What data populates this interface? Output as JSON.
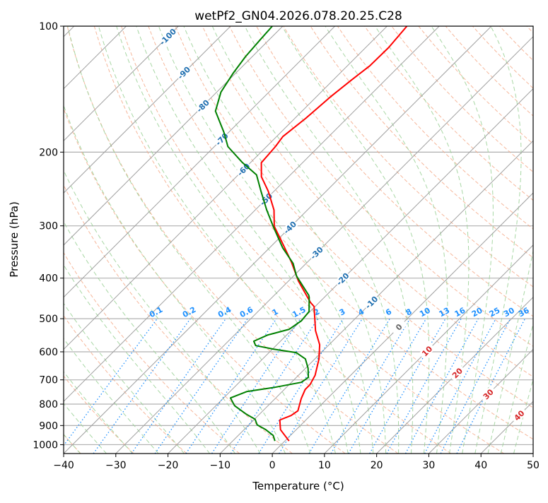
{
  "chart_data": {
    "type": "line",
    "subtype": "skew-t log-p",
    "title": "wetPf2_GN04.2026.078.20.25.C28",
    "xlabel": "Temperature (°C)",
    "ylabel": "Pressure (hPa)",
    "xlim": [
      -40,
      50
    ],
    "ylim": [
      1050,
      100
    ],
    "x_ticks": [
      -40,
      -30,
      -20,
      -10,
      0,
      10,
      20,
      30,
      40,
      50
    ],
    "y_ticks": [
      100,
      200,
      300,
      400,
      500,
      600,
      700,
      800,
      900,
      1000
    ],
    "grid": true,
    "colors": {
      "temperature": "#ff0000",
      "dewpoint": "#008000",
      "isotherm": "#a0a0a0",
      "dry_adiabat": "#f4a582",
      "moist_adiabat": "#9fd39a",
      "mixing_ratio": "#1e90ff",
      "isotherm_label_negative": "#1f6fb0",
      "isotherm_label_zero": "#666666",
      "isotherm_label_positive": "#d62728"
    },
    "series": [
      {
        "name": "Temperature",
        "pressure": [
          100,
          112.4,
          124.4,
          134.5,
          147.6,
          166,
          183.6,
          194,
          212,
          229,
          248,
          275,
          301,
          329.5,
          366,
          406.5,
          457,
          467.7,
          534,
          577,
          624,
          683,
          718,
          738,
          776,
          830,
          852,
          873,
          921,
          980
        ],
        "values": [
          -56.2,
          -55.6,
          -55.7,
          -56.5,
          -57.3,
          -57.9,
          -58.8,
          -58.3,
          -57.9,
          -55.2,
          -51.1,
          -46.4,
          -43.2,
          -38.5,
          -33.1,
          -28.1,
          -21.7,
          -20.2,
          -15.3,
          -11.8,
          -9.2,
          -6.8,
          -6.0,
          -6.0,
          -5.0,
          -3.3,
          -3.7,
          -5.0,
          -3.0,
          0.8
        ]
      },
      {
        "name": "Dewpoint",
        "pressure": [
          100,
          108,
          118.2,
          129.3,
          143.7,
          159.6,
          179.4,
          194,
          212,
          226.6,
          248,
          275,
          301,
          338.5,
          368.8,
          395.6,
          439.5,
          444.6,
          480.8,
          505.7,
          530,
          546.8,
          566,
          579.7,
          591,
          602.6,
          624,
          656.8,
          690.6,
          709.7,
          729.3,
          746.6,
          773.2,
          807,
          845.9,
          869.3,
          896.7,
          921,
          950.6,
          980
        ],
        "values": [
          -82.0,
          -81.7,
          -81.3,
          -80.5,
          -79.2,
          -76.6,
          -70.9,
          -67.4,
          -61.5,
          -56.5,
          -52.5,
          -47.8,
          -43.4,
          -37.5,
          -32.5,
          -29.4,
          -23.4,
          -22.9,
          -20.2,
          -19.9,
          -20.6,
          -23.6,
          -25.1,
          -23.9,
          -19.9,
          -14.8,
          -11.8,
          -9.5,
          -7.7,
          -8.1,
          -12.2,
          -16.8,
          -18.7,
          -16.4,
          -12.5,
          -9.9,
          -8.4,
          -5.8,
          -3.3,
          -1.9
        ]
      }
    ],
    "isotherm_labels": [
      -100,
      -90,
      -80,
      -70,
      -60,
      -50,
      -40,
      -30,
      -20,
      -10,
      0,
      10,
      20,
      30,
      40
    ],
    "mixing_ratio_labels": [
      "0.1",
      "0.2",
      "0.4",
      "0.6",
      "1",
      "1.5",
      "2",
      "3",
      "4",
      "6",
      "8",
      "10",
      "13",
      "16",
      "20",
      "25",
      "30",
      "36"
    ],
    "mixing_ratio_top_hpa": 500,
    "dry_adiabats_degC": {
      "start": -40,
      "end": 200,
      "step": 10
    },
    "moist_adiabats_degC": [
      -50,
      -45,
      -40,
      -35,
      -30,
      -25,
      -20,
      -15,
      -10,
      -5,
      0,
      5,
      10,
      12.5,
      15,
      17.5,
      20,
      22.5,
      25,
      27.5,
      30,
      32.5,
      35,
      37.5,
      40,
      42.5,
      45
    ]
  }
}
